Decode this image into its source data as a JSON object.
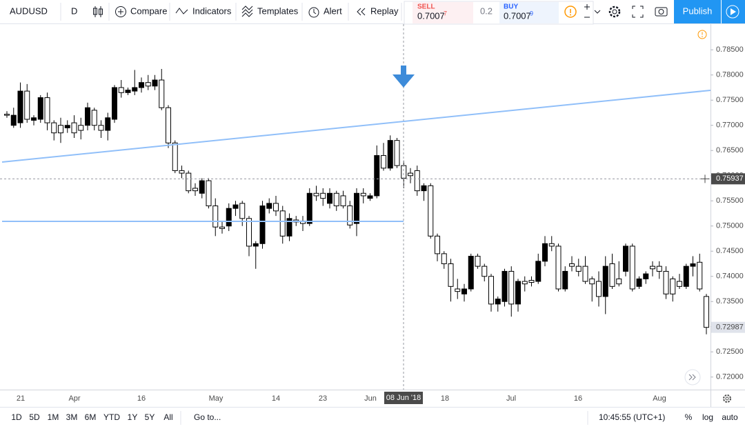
{
  "toolbar": {
    "symbol": "AUDUSD",
    "interval": "D",
    "compare": "Compare",
    "indicators": "Indicators",
    "templates": "Templates",
    "alert": "Alert",
    "replay": "Replay",
    "sell_label": "SELL",
    "sell_price": "0.7007",
    "sell_pip": "7",
    "spread": "0.2",
    "buy_label": "BUY",
    "buy_price": "0.7007",
    "buy_pip": "9",
    "publish": "Publish"
  },
  "chart_data": {
    "type": "candlestick",
    "ylim": [
      0.7175,
      0.7901
    ],
    "yticks": [
      {
        "value": 0.785,
        "label": "0.78500"
      },
      {
        "value": 0.78,
        "label": "0.78000"
      },
      {
        "value": 0.775,
        "label": "0.77500"
      },
      {
        "value": 0.77,
        "label": "0.77000"
      },
      {
        "value": 0.765,
        "label": "0.76500"
      },
      {
        "value": 0.76,
        "label": "0.76000"
      },
      {
        "value": 0.755,
        "label": "0.75500"
      },
      {
        "value": 0.75,
        "label": "0.75000"
      },
      {
        "value": 0.745,
        "label": "0.74500"
      },
      {
        "value": 0.74,
        "label": "0.74000"
      },
      {
        "value": 0.735,
        "label": "0.73500"
      },
      {
        "value": 0.73,
        "label": "0.73000"
      },
      {
        "value": 0.725,
        "label": "0.72500"
      },
      {
        "value": 0.72,
        "label": "0.72000"
      }
    ],
    "xtick_labels": [
      "21",
      "Apr",
      "16",
      "May",
      "14",
      "23",
      "Jun",
      "18",
      "Jul",
      "16",
      "Aug"
    ],
    "crosshair_date": "08 Jun '18",
    "crosshair_price": 0.75937,
    "candles": [
      [
        0.7722,
        0.7728,
        0.7715,
        0.772
      ],
      [
        0.77,
        0.7735,
        0.7695,
        0.772
      ],
      [
        0.7705,
        0.7785,
        0.7695,
        0.7768
      ],
      [
        0.7768,
        0.7782,
        0.7705,
        0.7712
      ],
      [
        0.771,
        0.772,
        0.77,
        0.7715
      ],
      [
        0.7712,
        0.776,
        0.7705,
        0.7755
      ],
      [
        0.7755,
        0.7765,
        0.769,
        0.7705
      ],
      [
        0.7705,
        0.771,
        0.767,
        0.7685
      ],
      [
        0.77,
        0.7715,
        0.7665,
        0.7685
      ],
      [
        0.7695,
        0.771,
        0.7685,
        0.77
      ],
      [
        0.7705,
        0.772,
        0.7675,
        0.7685
      ],
      [
        0.77,
        0.7715,
        0.7672,
        0.769
      ],
      [
        0.77,
        0.7745,
        0.769,
        0.7735
      ],
      [
        0.773,
        0.7735,
        0.769,
        0.77
      ],
      [
        0.77,
        0.771,
        0.7675,
        0.769
      ],
      [
        0.769,
        0.7725,
        0.767,
        0.7715
      ],
      [
        0.7712,
        0.778,
        0.7705,
        0.7775
      ],
      [
        0.7775,
        0.779,
        0.7755,
        0.7765
      ],
      [
        0.7765,
        0.7775,
        0.776,
        0.777
      ],
      [
        0.7768,
        0.781,
        0.776,
        0.7775
      ],
      [
        0.7775,
        0.7795,
        0.7765,
        0.7785
      ],
      [
        0.7785,
        0.78,
        0.777,
        0.7778
      ],
      [
        0.7778,
        0.78,
        0.777,
        0.779
      ],
      [
        0.779,
        0.7812,
        0.773,
        0.7735
      ],
      [
        0.7735,
        0.774,
        0.7655,
        0.7665
      ],
      [
        0.7665,
        0.767,
        0.7605,
        0.761
      ],
      [
        0.761,
        0.762,
        0.7595,
        0.7605
      ],
      [
        0.7605,
        0.761,
        0.7565,
        0.757
      ],
      [
        0.7575,
        0.7585,
        0.756,
        0.757
      ],
      [
        0.7565,
        0.7595,
        0.7555,
        0.759
      ],
      [
        0.759,
        0.7595,
        0.7535,
        0.754
      ],
      [
        0.754,
        0.7555,
        0.748,
        0.7498
      ],
      [
        0.7498,
        0.751,
        0.7485,
        0.7495
      ],
      [
        0.75,
        0.7545,
        0.749,
        0.7535
      ],
      [
        0.7535,
        0.755,
        0.752,
        0.7542
      ],
      [
        0.7545,
        0.755,
        0.75,
        0.7515
      ],
      [
        0.7515,
        0.752,
        0.744,
        0.746
      ],
      [
        0.746,
        0.747,
        0.7415,
        0.7465
      ],
      [
        0.7465,
        0.755,
        0.7455,
        0.754
      ],
      [
        0.7535,
        0.7555,
        0.7525,
        0.7545
      ],
      [
        0.7545,
        0.756,
        0.752,
        0.753
      ],
      [
        0.753,
        0.754,
        0.7465,
        0.748
      ],
      [
        0.748,
        0.7525,
        0.747,
        0.7515
      ],
      [
        0.7512,
        0.752,
        0.75,
        0.7508
      ],
      [
        0.751,
        0.752,
        0.749,
        0.7505
      ],
      [
        0.7505,
        0.7575,
        0.75,
        0.7565
      ],
      [
        0.7565,
        0.758,
        0.755,
        0.756
      ],
      [
        0.7565,
        0.7575,
        0.754,
        0.7555
      ],
      [
        0.7545,
        0.7575,
        0.7535,
        0.7565
      ],
      [
        0.7565,
        0.757,
        0.753,
        0.754
      ],
      [
        0.756,
        0.757,
        0.7535,
        0.754
      ],
      [
        0.754,
        0.755,
        0.7495,
        0.7502
      ],
      [
        0.7505,
        0.7575,
        0.748,
        0.7565
      ],
      [
        0.7565,
        0.7575,
        0.7545,
        0.756
      ],
      [
        0.7555,
        0.7565,
        0.755,
        0.756
      ],
      [
        0.756,
        0.766,
        0.7555,
        0.764
      ],
      [
        0.764,
        0.7665,
        0.761,
        0.7615
      ],
      [
        0.7615,
        0.768,
        0.761,
        0.767
      ],
      [
        0.767,
        0.7675,
        0.7615,
        0.762
      ],
      [
        0.762,
        0.763,
        0.7575,
        0.7595
      ],
      [
        0.7605,
        0.7615,
        0.7585,
        0.76
      ],
      [
        0.761,
        0.762,
        0.756,
        0.757
      ],
      [
        0.757,
        0.7585,
        0.755,
        0.758
      ],
      [
        0.758,
        0.7585,
        0.7475,
        0.748
      ],
      [
        0.748,
        0.7485,
        0.743,
        0.7445
      ],
      [
        0.7445,
        0.745,
        0.7415,
        0.7425
      ],
      [
        0.7425,
        0.7435,
        0.735,
        0.738
      ],
      [
        0.7375,
        0.7395,
        0.7355,
        0.737
      ],
      [
        0.7365,
        0.7385,
        0.735,
        0.7375
      ],
      [
        0.7375,
        0.7445,
        0.737,
        0.744
      ],
      [
        0.744,
        0.7445,
        0.7415,
        0.742
      ],
      [
        0.742,
        0.7425,
        0.739,
        0.74
      ],
      [
        0.74,
        0.7405,
        0.733,
        0.7345
      ],
      [
        0.7345,
        0.736,
        0.733,
        0.7355
      ],
      [
        0.735,
        0.7415,
        0.734,
        0.741
      ],
      [
        0.741,
        0.742,
        0.732,
        0.7345
      ],
      [
        0.7345,
        0.7395,
        0.733,
        0.739
      ],
      [
        0.739,
        0.74,
        0.737,
        0.7385
      ],
      [
        0.7392,
        0.74,
        0.738,
        0.7388
      ],
      [
        0.739,
        0.7445,
        0.7385,
        0.743
      ],
      [
        0.743,
        0.748,
        0.742,
        0.7465
      ],
      [
        0.7465,
        0.748,
        0.745,
        0.746
      ],
      [
        0.746,
        0.7465,
        0.737,
        0.7375
      ],
      [
        0.7375,
        0.742,
        0.737,
        0.741
      ],
      [
        0.7425,
        0.744,
        0.741,
        0.742
      ],
      [
        0.742,
        0.7435,
        0.74,
        0.741
      ],
      [
        0.742,
        0.744,
        0.7385,
        0.739
      ],
      [
        0.7395,
        0.74,
        0.735,
        0.7385
      ],
      [
        0.739,
        0.741,
        0.734,
        0.736
      ],
      [
        0.736,
        0.744,
        0.7325,
        0.742
      ],
      [
        0.7425,
        0.7445,
        0.7375,
        0.738
      ],
      [
        0.7395,
        0.743,
        0.738,
        0.7385
      ],
      [
        0.741,
        0.7465,
        0.74,
        0.746
      ],
      [
        0.746,
        0.7465,
        0.737,
        0.7375
      ],
      [
        0.738,
        0.74,
        0.7375,
        0.7395
      ],
      [
        0.7395,
        0.741,
        0.7385,
        0.7405
      ],
      [
        0.742,
        0.743,
        0.74,
        0.7415
      ],
      [
        0.742,
        0.743,
        0.7395,
        0.741
      ],
      [
        0.741,
        0.742,
        0.7355,
        0.7365
      ],
      [
        0.7395,
        0.74,
        0.735,
        0.7365
      ],
      [
        0.739,
        0.7405,
        0.7375,
        0.738
      ],
      [
        0.738,
        0.7425,
        0.7375,
        0.742
      ],
      [
        0.742,
        0.744,
        0.74,
        0.7425
      ],
      [
        0.7428,
        0.7445,
        0.737,
        0.7375
      ],
      [
        0.736,
        0.7365,
        0.7285,
        0.72987
      ]
    ]
  },
  "footer": {
    "ranges": [
      "1D",
      "5D",
      "1M",
      "3M",
      "6M",
      "YTD",
      "1Y",
      "5Y",
      "All"
    ],
    "goto": "Go to...",
    "clock": "10:45:55 (UTC+1)",
    "percent": "%",
    "log": "log",
    "auto": "auto"
  }
}
